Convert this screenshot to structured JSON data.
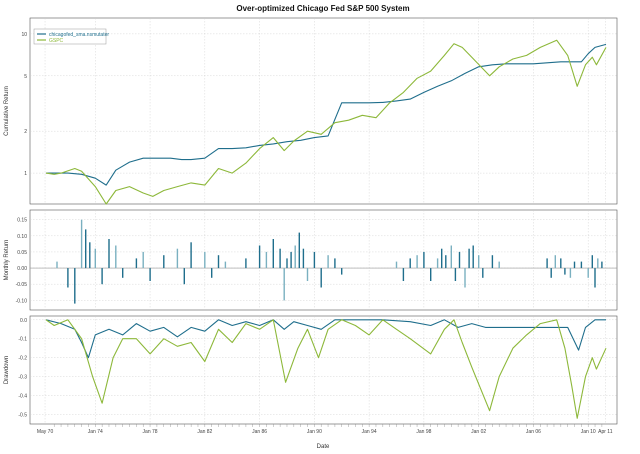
{
  "chart_data": {
    "type": "line",
    "title": "Over-optimized Chicago Fed S&P 500 System",
    "xlabel": "Date",
    "x_ticks": [
      "May 70",
      "Jan 74",
      "Jan 78",
      "Jan 82",
      "Jan 86",
      "Jan 90",
      "Jan 94",
      "Jan 98",
      "Jan 02",
      "Jan 06",
      "Jan 10",
      "Apr 11"
    ],
    "legend": {
      "placement": "top-left",
      "entries": [
        {
          "name": "chicagofed_sma.nsmutater",
          "color": "#1f6e8c"
        },
        {
          "name": "GSPC",
          "color": "#8db83a"
        }
      ]
    },
    "colors": {
      "system": "#1f6e8c",
      "benchmark": "#8db83a",
      "grid": "#cccccc",
      "bars_light": "#7ab0c0"
    },
    "panels": [
      {
        "name": "cumulative",
        "ylabel": "Cumulative Return",
        "scale": "log",
        "yticks": [
          "1",
          "2",
          "5",
          "10"
        ],
        "ylim": [
          0.6,
          13
        ]
      },
      {
        "name": "monthly",
        "ylabel": "Monthly Return",
        "yticks": [
          "-0.10",
          "-0.05",
          "0.00",
          "0.05",
          "0.10",
          "0.15"
        ],
        "ylim": [
          -0.13,
          0.18
        ]
      },
      {
        "name": "drawdown",
        "ylabel": "Drawdown",
        "yticks": [
          "-0.5",
          "-0.4",
          "-0.3",
          "-0.2",
          "-0.1",
          "0.0"
        ],
        "ylim": [
          -0.55,
          0.02
        ]
      }
    ],
    "series": [
      {
        "name": "chicagofed_sma.nsmutater",
        "panel": "cumulative",
        "points": [
          [
            1970.4,
            1.0
          ],
          [
            1971.0,
            1.0
          ],
          [
            1972.0,
            1.0
          ],
          [
            1973.0,
            0.98
          ],
          [
            1974.0,
            0.92
          ],
          [
            1974.8,
            0.82
          ],
          [
            1975.5,
            1.05
          ],
          [
            1976.5,
            1.2
          ],
          [
            1977.5,
            1.28
          ],
          [
            1978.5,
            1.28
          ],
          [
            1979.5,
            1.28
          ],
          [
            1980.3,
            1.25
          ],
          [
            1981.0,
            1.25
          ],
          [
            1982.0,
            1.28
          ],
          [
            1983.0,
            1.5
          ],
          [
            1984.0,
            1.5
          ],
          [
            1985.0,
            1.52
          ],
          [
            1986.0,
            1.58
          ],
          [
            1987.0,
            1.62
          ],
          [
            1988.0,
            1.68
          ],
          [
            1989.0,
            1.72
          ],
          [
            1990.0,
            1.8
          ],
          [
            1991.0,
            1.85
          ],
          [
            1992.0,
            3.2
          ],
          [
            1993.0,
            3.2
          ],
          [
            1994.0,
            3.2
          ],
          [
            1995.0,
            3.22
          ],
          [
            1996.0,
            3.3
          ],
          [
            1997.0,
            3.4
          ],
          [
            1998.0,
            3.8
          ],
          [
            1999.0,
            4.2
          ],
          [
            2000.0,
            4.6
          ],
          [
            2001.0,
            5.2
          ],
          [
            2002.0,
            5.8
          ],
          [
            2003.0,
            6.0
          ],
          [
            2004.0,
            6.1
          ],
          [
            2005.0,
            6.1
          ],
          [
            2006.0,
            6.1
          ],
          [
            2007.0,
            6.2
          ],
          [
            2008.0,
            6.3
          ],
          [
            2008.8,
            6.3
          ],
          [
            2009.5,
            6.3
          ],
          [
            2010.0,
            7.2
          ],
          [
            2010.5,
            8.0
          ],
          [
            2011.3,
            8.4
          ]
        ]
      },
      {
        "name": "GSPC",
        "panel": "cumulative",
        "points": [
          [
            1970.4,
            1.0
          ],
          [
            1971.0,
            0.98
          ],
          [
            1971.5,
            1.0
          ],
          [
            1972.5,
            1.08
          ],
          [
            1973.0,
            1.03
          ],
          [
            1974.0,
            0.8
          ],
          [
            1974.8,
            0.6
          ],
          [
            1975.5,
            0.75
          ],
          [
            1976.5,
            0.8
          ],
          [
            1977.5,
            0.72
          ],
          [
            1978.2,
            0.68
          ],
          [
            1979.0,
            0.75
          ],
          [
            1980.0,
            0.8
          ],
          [
            1981.0,
            0.85
          ],
          [
            1982.0,
            0.82
          ],
          [
            1983.0,
            1.08
          ],
          [
            1984.0,
            1.0
          ],
          [
            1985.0,
            1.18
          ],
          [
            1986.0,
            1.5
          ],
          [
            1987.0,
            1.8
          ],
          [
            1987.8,
            1.45
          ],
          [
            1988.5,
            1.7
          ],
          [
            1989.5,
            2.0
          ],
          [
            1990.5,
            1.9
          ],
          [
            1991.5,
            2.3
          ],
          [
            1992.5,
            2.4
          ],
          [
            1993.5,
            2.6
          ],
          [
            1994.5,
            2.5
          ],
          [
            1995.5,
            3.2
          ],
          [
            1996.5,
            3.8
          ],
          [
            1997.5,
            4.8
          ],
          [
            1998.5,
            5.4
          ],
          [
            1999.5,
            7.0
          ],
          [
            2000.2,
            8.5
          ],
          [
            2000.8,
            8.0
          ],
          [
            2001.5,
            6.8
          ],
          [
            2002.8,
            5.0
          ],
          [
            2003.5,
            5.8
          ],
          [
            2004.5,
            6.6
          ],
          [
            2005.5,
            7.0
          ],
          [
            2006.5,
            8.0
          ],
          [
            2007.7,
            9.0
          ],
          [
            2008.5,
            7.0
          ],
          [
            2009.2,
            4.2
          ],
          [
            2009.8,
            6.0
          ],
          [
            2010.3,
            6.8
          ],
          [
            2010.6,
            6.0
          ],
          [
            2011.3,
            8.0
          ]
        ]
      },
      {
        "name": "chicagofed_sma.nsmutater",
        "panel": "monthly",
        "bars": [
          [
            1971.2,
            0.02
          ],
          [
            1972.0,
            -0.06
          ],
          [
            1972.5,
            -0.11
          ],
          [
            1973.0,
            0.15
          ],
          [
            1973.3,
            0.12
          ],
          [
            1973.6,
            0.08
          ],
          [
            1974.0,
            0.06
          ],
          [
            1974.5,
            -0.05
          ],
          [
            1975.0,
            0.09
          ],
          [
            1975.5,
            0.07
          ],
          [
            1976.0,
            -0.03
          ],
          [
            1977.0,
            0.03
          ],
          [
            1977.5,
            0.05
          ],
          [
            1978.0,
            -0.04
          ],
          [
            1979.0,
            0.04
          ],
          [
            1980.0,
            0.06
          ],
          [
            1980.5,
            -0.05
          ],
          [
            1981.0,
            0.08
          ],
          [
            1982.0,
            0.05
          ],
          [
            1982.5,
            -0.03
          ],
          [
            1983.0,
            0.04
          ],
          [
            1983.5,
            0.02
          ],
          [
            1985.0,
            0.03
          ],
          [
            1986.0,
            0.07
          ],
          [
            1986.5,
            0.05
          ],
          [
            1987.0,
            0.09
          ],
          [
            1987.5,
            0.06
          ],
          [
            1987.8,
            -0.1
          ],
          [
            1988.0,
            0.03
          ],
          [
            1988.3,
            0.05
          ],
          [
            1988.6,
            0.07
          ],
          [
            1988.9,
            0.11
          ],
          [
            1989.2,
            0.06
          ],
          [
            1989.5,
            -0.04
          ],
          [
            1990.0,
            0.05
          ],
          [
            1990.5,
            -0.06
          ],
          [
            1991.0,
            0.04
          ],
          [
            1991.5,
            0.03
          ],
          [
            1992.0,
            -0.02
          ],
          [
            1996.0,
            0.02
          ],
          [
            1996.5,
            -0.04
          ],
          [
            1997.0,
            0.03
          ],
          [
            1997.5,
            0.04
          ],
          [
            1998.0,
            0.05
          ],
          [
            1998.5,
            -0.04
          ],
          [
            1999.0,
            0.03
          ],
          [
            1999.3,
            0.06
          ],
          [
            1999.6,
            0.04
          ],
          [
            2000.0,
            0.07
          ],
          [
            2000.3,
            -0.04
          ],
          [
            2000.6,
            0.05
          ],
          [
            2001.0,
            -0.06
          ],
          [
            2001.3,
            0.06
          ],
          [
            2001.6,
            0.07
          ],
          [
            2002.0,
            0.04
          ],
          [
            2002.3,
            -0.03
          ],
          [
            2003.0,
            0.04
          ],
          [
            2003.5,
            0.02
          ],
          [
            2007.0,
            0.03
          ],
          [
            2007.3,
            -0.03
          ],
          [
            2007.6,
            0.04
          ],
          [
            2008.0,
            0.03
          ],
          [
            2008.3,
            -0.02
          ],
          [
            2008.7,
            -0.03
          ],
          [
            2009.0,
            0.02
          ],
          [
            2009.5,
            0.02
          ],
          [
            2010.0,
            -0.03
          ],
          [
            2010.3,
            0.04
          ],
          [
            2010.5,
            -0.06
          ],
          [
            2010.7,
            0.03
          ],
          [
            2011.0,
            0.02
          ]
        ]
      },
      {
        "name": "chicagofed_sma.nsmutater",
        "panel": "drawdown",
        "points": [
          [
            1970.4,
            0.0
          ],
          [
            1971.5,
            -0.02
          ],
          [
            1972.5,
            -0.05
          ],
          [
            1973.0,
            -0.12
          ],
          [
            1973.5,
            -0.2
          ],
          [
            1974.0,
            -0.08
          ],
          [
            1975.0,
            -0.05
          ],
          [
            1976.0,
            -0.08
          ],
          [
            1977.0,
            -0.02
          ],
          [
            1978.0,
            -0.06
          ],
          [
            1979.0,
            -0.04
          ],
          [
            1980.0,
            -0.09
          ],
          [
            1981.0,
            -0.04
          ],
          [
            1982.0,
            -0.06
          ],
          [
            1983.0,
            0.0
          ],
          [
            1984.0,
            -0.03
          ],
          [
            1985.0,
            -0.01
          ],
          [
            1986.0,
            -0.03
          ],
          [
            1987.0,
            0.0
          ],
          [
            1987.8,
            -0.05
          ],
          [
            1988.5,
            -0.01
          ],
          [
            1989.5,
            -0.03
          ],
          [
            1990.5,
            -0.05
          ],
          [
            1991.5,
            0.0
          ],
          [
            1993.0,
            0.0
          ],
          [
            1995.0,
            0.0
          ],
          [
            1997.0,
            -0.01
          ],
          [
            1998.5,
            -0.03
          ],
          [
            1999.5,
            0.0
          ],
          [
            2000.5,
            -0.04
          ],
          [
            2001.5,
            -0.02
          ],
          [
            2002.5,
            -0.04
          ],
          [
            2003.5,
            -0.04
          ],
          [
            2004.5,
            -0.04
          ],
          [
            2006.0,
            -0.04
          ],
          [
            2007.5,
            -0.04
          ],
          [
            2008.5,
            -0.04
          ],
          [
            2009.3,
            -0.16
          ],
          [
            2009.8,
            -0.04
          ],
          [
            2010.5,
            0.0
          ],
          [
            2011.3,
            0.0
          ]
        ]
      },
      {
        "name": "GSPC",
        "panel": "drawdown",
        "points": [
          [
            1970.4,
            0.0
          ],
          [
            1971.0,
            -0.03
          ],
          [
            1972.0,
            0.0
          ],
          [
            1973.0,
            -0.1
          ],
          [
            1973.8,
            -0.3
          ],
          [
            1974.5,
            -0.44
          ],
          [
            1975.3,
            -0.2
          ],
          [
            1976.0,
            -0.1
          ],
          [
            1977.0,
            -0.1
          ],
          [
            1978.0,
            -0.18
          ],
          [
            1979.0,
            -0.1
          ],
          [
            1980.0,
            -0.14
          ],
          [
            1981.0,
            -0.12
          ],
          [
            1982.0,
            -0.22
          ],
          [
            1983.0,
            -0.05
          ],
          [
            1984.0,
            -0.12
          ],
          [
            1985.0,
            -0.02
          ],
          [
            1986.0,
            -0.05
          ],
          [
            1987.0,
            0.0
          ],
          [
            1987.9,
            -0.33
          ],
          [
            1988.8,
            -0.15
          ],
          [
            1989.5,
            -0.05
          ],
          [
            1990.3,
            -0.2
          ],
          [
            1991.0,
            -0.05
          ],
          [
            1992.0,
            0.0
          ],
          [
            1993.0,
            -0.03
          ],
          [
            1994.0,
            -0.08
          ],
          [
            1995.0,
            0.0
          ],
          [
            1996.0,
            -0.05
          ],
          [
            1997.0,
            -0.1
          ],
          [
            1998.5,
            -0.18
          ],
          [
            1999.5,
            -0.05
          ],
          [
            2000.2,
            0.0
          ],
          [
            2000.8,
            -0.12
          ],
          [
            2001.5,
            -0.25
          ],
          [
            2002.8,
            -0.48
          ],
          [
            2003.5,
            -0.3
          ],
          [
            2004.5,
            -0.15
          ],
          [
            2005.5,
            -0.08
          ],
          [
            2006.5,
            -0.02
          ],
          [
            2007.7,
            0.0
          ],
          [
            2008.3,
            -0.15
          ],
          [
            2008.8,
            -0.35
          ],
          [
            2009.2,
            -0.52
          ],
          [
            2009.8,
            -0.3
          ],
          [
            2010.3,
            -0.2
          ],
          [
            2010.6,
            -0.26
          ],
          [
            2011.3,
            -0.15
          ]
        ]
      }
    ]
  }
}
